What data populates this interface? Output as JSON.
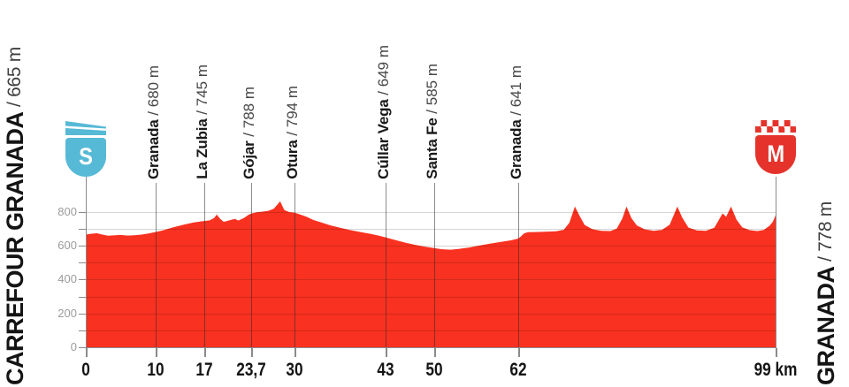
{
  "stage": {
    "start": {
      "name": "CARREFOUR GRANADA",
      "altitude_label": "/ 665 m",
      "marker_letter": "S"
    },
    "finish": {
      "name": "GRANADA",
      "altitude_label": "/ 778 m",
      "marker_letter": "M"
    }
  },
  "chart_data": {
    "type": "area",
    "x_unit": "km",
    "y_unit": "m",
    "xlim": [
      0,
      99
    ],
    "y_ticks_major": [
      0,
      200,
      400,
      600,
      800
    ],
    "y_minor_step": 100,
    "grid": "minor horizontal lines every 100 m; vertical line at each waypoint",
    "waypoints": [
      {
        "name": "Granada",
        "altitude_label": "/ 680 m",
        "km": 10
      },
      {
        "name": "La Zubia",
        "altitude_label": "/ 745 m",
        "km": 17
      },
      {
        "name": "Gójar",
        "altitude_label": "/ 788 m",
        "km": 23.7
      },
      {
        "name": "Otura",
        "altitude_label": "/ 794 m",
        "km": 30
      },
      {
        "name": "Cúllar Vega",
        "altitude_label": "/ 649 m",
        "km": 43
      },
      {
        "name": "Santa Fe",
        "altitude_label": "/ 585 m",
        "km": 50
      },
      {
        "name": "Granada",
        "altitude_label": "/ 641 m",
        "km": 62
      }
    ],
    "x_tick_labels": [
      {
        "km": 0,
        "label": "0"
      },
      {
        "km": 10,
        "label": "10"
      },
      {
        "km": 17,
        "label": "17"
      },
      {
        "km": 23.7,
        "label": "23,7"
      },
      {
        "km": 30,
        "label": "30"
      },
      {
        "km": 43,
        "label": "43"
      },
      {
        "km": 50,
        "label": "50"
      },
      {
        "km": 62,
        "label": "62"
      },
      {
        "km": 99,
        "label": "99 km"
      }
    ],
    "profile_km_m": [
      [
        0,
        665
      ],
      [
        0.8,
        670
      ],
      [
        1.6,
        673
      ],
      [
        2.4,
        665
      ],
      [
        3.2,
        658
      ],
      [
        4.2,
        661
      ],
      [
        5,
        663
      ],
      [
        6,
        659
      ],
      [
        7,
        661
      ],
      [
        8,
        665
      ],
      [
        9,
        671
      ],
      [
        10,
        680
      ],
      [
        11,
        689
      ],
      [
        12.5,
        707
      ],
      [
        14,
        723
      ],
      [
        15.5,
        737
      ],
      [
        17,
        745
      ],
      [
        17.8,
        749
      ],
      [
        18.4,
        762
      ],
      [
        18.8,
        783
      ],
      [
        19.3,
        757
      ],
      [
        19.8,
        740
      ],
      [
        20.6,
        749
      ],
      [
        21.4,
        757
      ],
      [
        21.9,
        748
      ],
      [
        22.7,
        763
      ],
      [
        23.3,
        780
      ],
      [
        23.7,
        788
      ],
      [
        24.5,
        797
      ],
      [
        25.3,
        800
      ],
      [
        26.2,
        805
      ],
      [
        27,
        818
      ],
      [
        27.9,
        861
      ],
      [
        28.5,
        810
      ],
      [
        29.2,
        798
      ],
      [
        30,
        794
      ],
      [
        30.8,
        783
      ],
      [
        31.7,
        770
      ],
      [
        32.6,
        752
      ],
      [
        33.8,
        737
      ],
      [
        35.2,
        718
      ],
      [
        36.6,
        704
      ],
      [
        38,
        691
      ],
      [
        39.5,
        679
      ],
      [
        41,
        668
      ],
      [
        42,
        659
      ],
      [
        43,
        649
      ],
      [
        44.4,
        633
      ],
      [
        45.8,
        618
      ],
      [
        47.2,
        605
      ],
      [
        48.6,
        594
      ],
      [
        50,
        585
      ],
      [
        51,
        579
      ],
      [
        52.3,
        576
      ],
      [
        53.5,
        580
      ],
      [
        55,
        589
      ],
      [
        56.5,
        600
      ],
      [
        58,
        611
      ],
      [
        59.5,
        621
      ],
      [
        61,
        631
      ],
      [
        62,
        641
      ],
      [
        62.4,
        652
      ],
      [
        62.9,
        672
      ],
      [
        63.5,
        679
      ],
      [
        64.5,
        680
      ],
      [
        66,
        682
      ],
      [
        67.5,
        685
      ],
      [
        68.6,
        693
      ],
      [
        69.4,
        735
      ],
      [
        70.2,
        830
      ],
      [
        70.9,
        773
      ],
      [
        71.6,
        722
      ],
      [
        72.7,
        697
      ],
      [
        74,
        687
      ],
      [
        75.3,
        686
      ],
      [
        76.2,
        700
      ],
      [
        77,
        760
      ],
      [
        77.6,
        830
      ],
      [
        78.3,
        763
      ],
      [
        79.1,
        718
      ],
      [
        80.2,
        696
      ],
      [
        81.5,
        687
      ],
      [
        82.7,
        693
      ],
      [
        83.8,
        723
      ],
      [
        84.9,
        830
      ],
      [
        85.6,
        765
      ],
      [
        86.5,
        706
      ],
      [
        87.7,
        690
      ],
      [
        89,
        687
      ],
      [
        90.2,
        705
      ],
      [
        91.4,
        790
      ],
      [
        91.9,
        770
      ],
      [
        92.6,
        830
      ],
      [
        93.4,
        752
      ],
      [
        94.2,
        708
      ],
      [
        95.3,
        691
      ],
      [
        96.4,
        686
      ],
      [
        97.3,
        692
      ],
      [
        98.1,
        716
      ],
      [
        98.6,
        740
      ],
      [
        99,
        778
      ]
    ]
  },
  "colors": {
    "profile_red": "#f93120",
    "marker_red": "#e5332c",
    "start_cyan": "#56b9d6",
    "grid_gray": "#8a8a8a",
    "text_black": "#141414",
    "y_label_gray": "#9c9c9c"
  }
}
